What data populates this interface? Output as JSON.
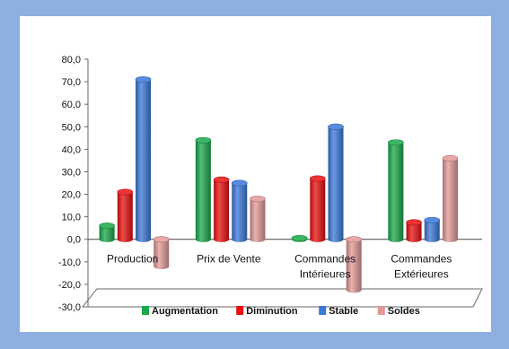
{
  "chart_data": {
    "type": "bar",
    "style": "3d-cylinder",
    "categories": [
      [
        "Production"
      ],
      [
        "Prix de Vente"
      ],
      [
        "Commandes",
        "Intérieures"
      ],
      [
        "Commandes",
        "Extérieures"
      ]
    ],
    "series": [
      {
        "name": "Augmentation",
        "color": "#1aa84a",
        "values": [
          6.0,
          44.0,
          0.5,
          43.0
        ]
      },
      {
        "name": "Diminution",
        "color": "#e81010",
        "values": [
          21.0,
          26.5,
          27.0,
          7.5
        ]
      },
      {
        "name": "Stable",
        "color": "#3a78d8",
        "values": [
          71.0,
          25.0,
          50.0,
          8.5
        ]
      },
      {
        "name": "Soldes",
        "color": "#e09898",
        "values": [
          -12.0,
          18.0,
          -22.5,
          36.0
        ]
      }
    ],
    "ylim": [
      -30,
      80
    ],
    "yticks": [
      "80,0",
      "70,0",
      "60,0",
      "50,0",
      "40,0",
      "30,0",
      "20,0",
      "10,0",
      "0,0",
      "-10,0",
      "-20,0",
      "-30,0"
    ],
    "legend_position": "bottom"
  }
}
